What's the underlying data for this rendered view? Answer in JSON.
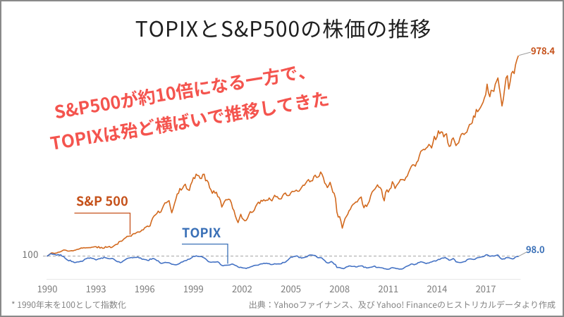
{
  "slide": {
    "title": "TOPIXとS&P500の株価の推移",
    "annotation": {
      "line1": "S&P500が約10倍になる一方で、",
      "line2": "TOPIXは殆ど横ばいで推移してきた",
      "color": "#F4544E"
    },
    "footnote": "* 1990年末を100として指数化",
    "source_note": "出典：Yahooファイナンス、及び Yahoo! Financeのヒストリカルデータより作成",
    "border_color": "#898989"
  },
  "chart_data": {
    "type": "line",
    "title": "TOPIXとS&P500の株価の推移",
    "x_unit": "month",
    "x_start": "1990-12",
    "x_end": "2019-12",
    "x_tick_labels": [
      "1990",
      "1993",
      "1996",
      "1999",
      "2002",
      "2005",
      "2008",
      "2011",
      "2014",
      "2017"
    ],
    "x_tick_interval_months": 36,
    "ylim": [
      0,
      1000
    ],
    "grid": "off",
    "baseline": {
      "value": 100,
      "label": "100",
      "style": "dashed",
      "color": "#A6A6A6"
    },
    "axis_color": "#E8E8E8",
    "tick_label_color": "#7C7C7C",
    "legend_position": "inline-callouts",
    "series": [
      {
        "name": "S&P 500",
        "color": "#D2691E",
        "label_color": "#C5511A",
        "end_label": "978.4",
        "values": [
          100.0,
          104.2,
          109.0,
          113.6,
          113.9,
          111.5,
          112.4,
          113.3,
          116.6,
          117.5,
          119.4,
          122.8,
          126.3,
          126.4,
          125.0,
          122.2,
          121.6,
          122.7,
          123.6,
          122.9,
          125.0,
          126.5,
          129.1,
          129.9,
          131.9,
          135.6,
          134.9,
          136.8,
          135.5,
          136.5,
          136.4,
          137.0,
          136.8,
          139.0,
          139.5,
          140.9,
          141.3,
          136.2,
          141.7,
          135.0,
          138.2,
          134.2,
          134.5,
          141.3,
          138.3,
          140.1,
          142.3,
          136.8,
          139.1,
          143.6,
          148.2,
          151.6,
          151.8,
          163.0,
          165.0,
          165.2,
          170.9,
          177.0,
          180.5,
          186.7,
          186.5,
          188.1,
          187.3,
          195.5,
          198.7,
          198.5,
          203.1,
          206.3,
          204.9,
          208.1,
          214.7,
          214.8,
          224.3,
          227.7,
          231.9,
          229.3,
          232.6,
          253.3,
          268.0,
          276.6,
          281.1,
          286.9,
          297.5,
          290.6,
          293.9,
          308.5,
          322.7,
          333.6,
          334.0,
          339.4,
          343.4,
          314.8,
          289.9,
          308.0,
          329.5,
          348.9,
          372.2,
          375.7,
          396.9,
          389.5,
          397.6,
          409.3,
          415.7,
          396.3,
          391.3,
          388.4,
          413.3,
          425.8,
          444.9,
          440.2,
          459.8,
          453.8,
          452.9,
          440.7,
          440.5,
          458.8,
          459.6,
          430.8,
          432.9,
          423.9,
          399.8,
          390.7,
          375.5,
          386.5,
          376.4,
          380.3,
          360.9,
          358.0,
          343.3,
          315.2,
          327.1,
          340.1,
          347.7,
          346.8,
          349.8,
          347.5,
          334.3,
          309.3,
          299.7,
          276.1,
          259.9,
          246.9,
          264.9,
          283.5,
          266.4,
          260.5,
          254.7,
          256.9,
          266.4,
          281.8,
          295.1,
          291.1,
          294.4,
          301.6,
          317.5,
          327.9,
          336.7,
          330.7,
          344.7,
          341.0,
          347.7,
          342.5,
          345.5,
          345.1,
          355.3,
          347.3,
          342.3,
          355.3,
          367.0,
          360.3,
          360.8,
          351.9,
          350.3,
          352.1,
          365.8,
          373.7,
          376.8,
          366.5,
          365.5,
          366.8,
          378.0,
          384.3,
          383.4,
          384.8,
          389.8,
          384.6,
          384.7,
          392.5,
          402.2,
          411.1,
          410.6,
          420.0,
          429.5,
          436.0,
          426.0,
          430.0,
          430.7,
          449.2,
          455.3,
          445.5,
          446.4,
          451.4,
          469.2,
          459.9,
          444.7,
          421.1,
          413.9,
          400.6,
          410.4,
          424.1,
          403.6,
          380.4,
          375.6,
          353.2,
          293.4,
          271.4,
          273.5,
          253.2,
          222.6,
          244.0,
          264.3,
          273.8,
          283.0,
          299.0,
          305.7,
          320.1,
          327.1,
          331.3,
          337.7,
          337.6,
          348.2,
          355.0,
          359.4,
          328.2,
          312.1,
          324.5,
          317.8,
          329.6,
          341.0,
          365.1,
          380.8,
          388.1,
          393.3,
          402.5,
          412.9,
          402.5,
          400.7,
          391.3,
          358.9,
          342.6,
          379.5,
          391.0,
          380.8,
          393.7,
          399.0,
          426.5,
          416.4,
          396.8,
          408.5,
          416.5,
          424.4,
          436.3,
          435.8,
          435.9,
          431.9,
          445.3,
          451.0,
          467.0,
          481.2,
          493.8,
          500.9,
          500.2,
          494.5,
          511.7,
          518.7,
          541.7,
          559.7,
          564.4,
          568.5,
          567.0,
          574.0,
          579.0,
          590.3,
          584.7,
          574.7,
          597.3,
          625.7,
          610.8,
          623.5,
          650.1,
          637.3,
          645.7,
          643.9,
          623.4,
          633.5,
          637.1,
          597.2,
          581.4,
          584.5,
          612.2,
          619.0,
          602.8,
          585.1,
          592.7,
          597.2,
          620.3,
          635.6,
          638.7,
          633.7,
          640.1,
          643.9,
          661.9,
          678.0,
          679.4,
          684.8,
          715.5,
          709.5,
          744.0,
          733.9,
          742.3,
          751.4,
          762.9,
          774.7,
          794.4,
          809.6,
          855.1,
          817.8,
          799.7,
          827.9,
          826.6,
          823.2,
          854.2,
          868.1,
          882.4,
          841.4,
          803.4,
          759.1,
          788.9,
          837.4,
          882.2,
          892.1,
          833.4,
          863.8,
          902.5,
          911.4,
          901.4,
          940.0,
          961.7,
          978.4
        ]
      },
      {
        "name": "TOPIX",
        "color": "#4472C4",
        "label_color": "#3A70B7",
        "end_label": "98.0",
        "values": [
          100.0,
          103.5,
          108.6,
          110.2,
          107.8,
          108.4,
          106.0,
          103.7,
          107.1,
          103.8,
          105.6,
          98.8,
          98.9,
          91.9,
          86.5,
          82.4,
          79.0,
          82.0,
          75.6,
          75.4,
          71.6,
          71.8,
          74.0,
          74.1,
          75.4,
          77.4,
          76.7,
          82.0,
          87.2,
          88.4,
          91.7,
          90.1,
          92.3,
          90.0,
          89.3,
          86.6,
          83.0,
          85.1,
          88.1,
          88.2,
          91.5,
          89.9,
          94.8,
          92.6,
          90.9,
          89.3,
          88.0,
          88.5,
          89.9,
          87.3,
          82.5,
          77.8,
          75.1,
          75.3,
          70.9,
          72.8,
          78.0,
          81.7,
          85.4,
          89.2,
          91.0,
          91.8,
          93.8,
          92.3,
          93.7,
          94.0,
          94.0,
          95.7,
          91.5,
          91.5,
          86.2,
          86.3,
          84.8,
          84.4,
          81.2,
          80.2,
          87.6,
          85.8,
          89.4,
          88.1,
          84.8,
          79.8,
          79.1,
          72.3,
          67.8,
          68.4,
          70.2,
          72.2,
          71.6,
          71.2,
          70.5,
          67.7,
          64.2,
          63.5,
          62.1,
          61.5,
          62.7,
          65.2,
          68.3,
          73.1,
          74.2,
          78.2,
          79.8,
          80.8,
          85.9,
          86.3,
          89.5,
          93.7,
          99.3,
          98.1,
          100.9,
          99.0,
          98.1,
          97.8,
          98.3,
          94.3,
          91.7,
          87.7,
          81.9,
          75.7,
          74.0,
          72.5,
          73.6,
          73.7,
          73.4,
          74.1,
          75.0,
          70.9,
          63.0,
          59.0,
          57.2,
          59.5,
          59.5,
          60.0,
          60.4,
          61.1,
          64.1,
          65.0,
          61.7,
          58.8,
          56.5,
          52.1,
          49.7,
          51.0,
          48.6,
          47.5,
          47.3,
          45.4,
          48.4,
          49.1,
          52.1,
          53.9,
          56.3,
          58.8,
          59.6,
          59.7,
          60.2,
          64.0,
          65.7,
          65.7,
          68.4,
          67.3,
          68.7,
          66.5,
          66.8,
          62.9,
          62.6,
          63.6,
          66.3,
          64.9,
          65.3,
          65.6,
          65.4,
          66.3,
          72.1,
          71.4,
          73.3,
          78.7,
          83.3,
          89.8,
          95.2,
          95.0,
          97.8,
          98.6,
          100.4,
          99.9,
          93.3,
          94.2,
          91.0,
          92.9,
          93.6,
          95.7,
          97.0,
          102.2,
          104.8,
          104.7,
          103.9,
          102.7,
          102.4,
          96.9,
          92.7,
          92.7,
          93.4,
          90.9,
          85.1,
          80.7,
          73.2,
          70.0,
          69.7,
          73.2,
          76.1,
          71.4,
          64.6,
          62.7,
          50.0,
          49.8,
          49.6,
          47.2,
          46.0,
          44.6,
          47.9,
          52.1,
          53.6,
          56.6,
          56.3,
          54.3,
          54.3,
          55.1,
          52.3,
          52.5,
          55.6,
          56.2,
          57.0,
          56.3,
          50.1,
          51.6,
          47.8,
          48.2,
          49.9,
          50.8,
          51.8,
          54.2,
          56.2,
          50.1,
          49.8,
          50.4,
          49.3,
          48.5,
          47.4,
          44.5,
          44.0,
          42.0,
          42.0,
          43.6,
          47.8,
          49.3,
          48.0,
          47.0,
          44.7,
          44.8,
          42.6,
          43.0,
          42.8,
          45.2,
          49.6,
          53.5,
          55.8,
          58.1,
          61.4,
          65.5,
          64.8,
          61.8,
          63.8,
          65.5,
          71.1,
          71.8,
          75.1,
          73.6,
          72.0,
          69.4,
          67.0,
          69.3,
          69.5,
          72.8,
          74.1,
          77.0,
          79.0,
          77.7,
          81.2,
          85.3,
          84.8,
          89.5,
          91.4,
          91.3,
          94.0,
          89.6,
          86.7,
          81.4,
          82.9,
          85.5,
          89.2,
          83.8,
          74.9,
          73.5,
          72.1,
          71.5,
          71.9,
          73.5,
          75.5,
          76.3,
          82.9,
          86.1,
          87.6,
          87.3,
          86.0,
          84.8,
          85.8,
          90.3,
          93.0,
          93.5,
          95.0,
          96.6,
          97.1,
          99.5,
          104.8,
          105.9,
          102.6,
          99.0,
          100.2,
          100.8,
          99.7,
          101.3,
          103.7,
          104.8,
          96.5,
          90.0,
          86.2,
          87.8,
          87.3,
          93.3,
          93.3,
          92.9,
          90.5,
          88.6,
          87.2,
          89.9,
          96.1,
          97.6,
          98.0
        ]
      }
    ]
  }
}
